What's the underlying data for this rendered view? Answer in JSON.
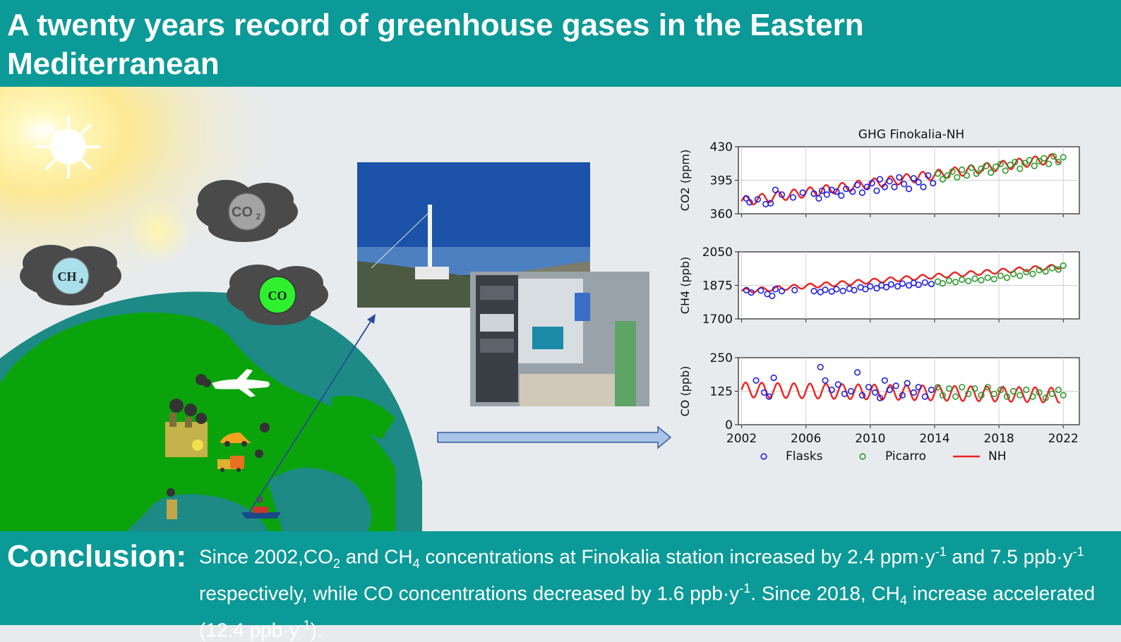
{
  "header": {
    "title": "A twenty years record of greenhouse gases in the Eastern Mediterranean"
  },
  "scene": {
    "clouds": [
      {
        "label": "CO",
        "sub": "2"
      },
      {
        "label": "CH",
        "sub": "4"
      },
      {
        "label": "CO",
        "sub": ""
      }
    ]
  },
  "footer": {
    "label": "Conclusion:",
    "p1": "Since 2002,CO",
    "p2": " and CH",
    "p3": " concentrations at Finokalia station increased by 2.4 ppm·y",
    "p4": " and 7.5 ppb·y",
    "p5": " respectively, while CO concentrations decreased by 1.6 ppb·y",
    "p6": ". Since 2018, CH",
    "p7": " increase accelerated (12.4 ppb·y",
    "p8": ").",
    "sub2": "2",
    "sub4": "4",
    "sup": "-1"
  },
  "chart_data": {
    "type": "scatter",
    "title": "GHG Finokalia-NH",
    "x_ticks": [
      "2002",
      "2006",
      "2010",
      "2014",
      "2018",
      "2022"
    ],
    "xlim": [
      2001.8,
      2023
    ],
    "legend": [
      "Flasks",
      "Picarro",
      "NH"
    ],
    "colors": {
      "flasks": "#1f1fe0",
      "picarro": "#2c9a2c",
      "nh": "#ee2222"
    },
    "panels": [
      {
        "ylabel": "CO2 (ppm)",
        "ylim": [
          360,
          430
        ],
        "yticks": [
          "360",
          "395",
          "430"
        ],
        "nh": {
          "base": 373,
          "trend": 2.3,
          "amp": 5
        },
        "flasks": [
          [
            2002.3,
            376
          ],
          [
            2002.5,
            372
          ],
          [
            2003.0,
            375
          ],
          [
            2003.5,
            370
          ],
          [
            2003.8,
            371
          ],
          [
            2004.1,
            385
          ],
          [
            2004.5,
            380
          ],
          [
            2005.2,
            377
          ],
          [
            2005.8,
            382
          ],
          [
            2006.5,
            381
          ],
          [
            2006.8,
            376
          ],
          [
            2007.0,
            384
          ],
          [
            2007.3,
            380
          ],
          [
            2007.6,
            385
          ],
          [
            2007.9,
            383
          ],
          [
            2008.2,
            379
          ],
          [
            2008.5,
            386
          ],
          [
            2008.9,
            383
          ],
          [
            2009.2,
            390
          ],
          [
            2009.5,
            382
          ],
          [
            2009.8,
            388
          ],
          [
            2010.1,
            392
          ],
          [
            2010.4,
            384
          ],
          [
            2010.6,
            396
          ],
          [
            2010.9,
            388
          ],
          [
            2011.2,
            394
          ],
          [
            2011.5,
            388
          ],
          [
            2011.8,
            398
          ],
          [
            2012.1,
            391
          ],
          [
            2012.4,
            386
          ],
          [
            2012.7,
            397
          ],
          [
            2013.0,
            393
          ],
          [
            2013.3,
            388
          ],
          [
            2013.6,
            400
          ],
          [
            2013.9,
            392
          ]
        ],
        "picarro": [
          [
            2014.2,
            402
          ],
          [
            2014.5,
            396
          ],
          [
            2014.8,
            400
          ],
          [
            2015.1,
            404
          ],
          [
            2015.4,
            398
          ],
          [
            2015.7,
            406
          ],
          [
            2016.0,
            400
          ],
          [
            2016.3,
            408
          ],
          [
            2016.6,
            402
          ],
          [
            2016.9,
            407
          ],
          [
            2017.2,
            410
          ],
          [
            2017.5,
            403
          ],
          [
            2017.8,
            409
          ],
          [
            2018.1,
            412
          ],
          [
            2018.4,
            405
          ],
          [
            2018.7,
            411
          ],
          [
            2019.0,
            414
          ],
          [
            2019.3,
            407
          ],
          [
            2019.6,
            413
          ],
          [
            2019.9,
            416
          ],
          [
            2020.2,
            410
          ],
          [
            2020.5,
            415
          ],
          [
            2020.8,
            418
          ],
          [
            2021.1,
            412
          ],
          [
            2021.4,
            420
          ],
          [
            2021.7,
            414
          ],
          [
            2022.0,
            419
          ]
        ]
      },
      {
        "ylabel": "CH4 (ppb)",
        "ylim": [
          1700,
          2050
        ],
        "yticks": [
          "1700",
          "1875",
          "2050"
        ],
        "nh": {
          "base": 1845,
          "trend": 6.5,
          "amp": 12
        },
        "flasks": [
          [
            2002.3,
            1850
          ],
          [
            2002.6,
            1838
          ],
          [
            2003.2,
            1848
          ],
          [
            2003.6,
            1830
          ],
          [
            2003.9,
            1820
          ],
          [
            2004.1,
            1855
          ],
          [
            2004.5,
            1845
          ],
          [
            2005.3,
            1850
          ],
          [
            2006.5,
            1845
          ],
          [
            2006.9,
            1840
          ],
          [
            2007.2,
            1852
          ],
          [
            2007.6,
            1843
          ],
          [
            2007.9,
            1855
          ],
          [
            2008.3,
            1846
          ],
          [
            2008.7,
            1858
          ],
          [
            2009.0,
            1850
          ],
          [
            2009.4,
            1865
          ],
          [
            2009.7,
            1855
          ],
          [
            2010.0,
            1870
          ],
          [
            2010.4,
            1860
          ],
          [
            2010.7,
            1875
          ],
          [
            2011.0,
            1866
          ],
          [
            2011.3,
            1880
          ],
          [
            2011.7,
            1870
          ],
          [
            2012.0,
            1884
          ],
          [
            2012.4,
            1875
          ],
          [
            2012.7,
            1888
          ],
          [
            2013.0,
            1878
          ],
          [
            2013.4,
            1890
          ],
          [
            2013.8,
            1882
          ]
        ],
        "picarro": [
          [
            2014.2,
            1895
          ],
          [
            2014.5,
            1885
          ],
          [
            2014.9,
            1900
          ],
          [
            2015.3,
            1892
          ],
          [
            2015.7,
            1905
          ],
          [
            2016.1,
            1898
          ],
          [
            2016.5,
            1910
          ],
          [
            2016.9,
            1902
          ],
          [
            2017.3,
            1915
          ],
          [
            2017.7,
            1908
          ],
          [
            2018.1,
            1925
          ],
          [
            2018.5,
            1915
          ],
          [
            2018.9,
            1935
          ],
          [
            2019.3,
            1925
          ],
          [
            2019.7,
            1945
          ],
          [
            2020.1,
            1935
          ],
          [
            2020.5,
            1955
          ],
          [
            2020.9,
            1948
          ],
          [
            2021.3,
            1965
          ],
          [
            2021.7,
            1958
          ],
          [
            2022.0,
            1978
          ]
        ]
      },
      {
        "ylabel": "CO (ppb)",
        "ylim": [
          0,
          250
        ],
        "yticks": [
          "0",
          "125",
          "250"
        ],
        "nh": {
          "base": 130,
          "trend": -1.0,
          "amp": 28
        },
        "flasks": [
          [
            2002.9,
            165
          ],
          [
            2003.4,
            120
          ],
          [
            2003.7,
            105
          ],
          [
            2004.0,
            175
          ],
          [
            2006.9,
            215
          ],
          [
            2007.2,
            165
          ],
          [
            2007.6,
            130
          ],
          [
            2008.0,
            150
          ],
          [
            2008.4,
            115
          ],
          [
            2008.8,
            125
          ],
          [
            2009.2,
            195
          ],
          [
            2009.5,
            110
          ],
          [
            2009.9,
            140
          ],
          [
            2010.3,
            120
          ],
          [
            2010.6,
            100
          ],
          [
            2010.9,
            165
          ],
          [
            2011.2,
            130
          ],
          [
            2011.6,
            145
          ],
          [
            2012.0,
            110
          ],
          [
            2012.3,
            155
          ],
          [
            2012.7,
            120
          ],
          [
            2013.0,
            140
          ],
          [
            2013.4,
            105
          ],
          [
            2013.8,
            130
          ]
        ],
        "picarro": [
          [
            2014.2,
            140
          ],
          [
            2014.5,
            110
          ],
          [
            2014.9,
            135
          ],
          [
            2015.3,
            105
          ],
          [
            2015.7,
            140
          ],
          [
            2016.1,
            115
          ],
          [
            2016.5,
            135
          ],
          [
            2016.9,
            110
          ],
          [
            2017.3,
            140
          ],
          [
            2017.7,
            115
          ],
          [
            2018.1,
            130
          ],
          [
            2018.5,
            105
          ],
          [
            2018.9,
            125
          ],
          [
            2019.3,
            110
          ],
          [
            2019.7,
            130
          ],
          [
            2020.1,
            105
          ],
          [
            2020.5,
            120
          ],
          [
            2020.9,
            100
          ],
          [
            2021.3,
            115
          ],
          [
            2021.7,
            130
          ],
          [
            2022.0,
            110
          ]
        ]
      }
    ]
  }
}
